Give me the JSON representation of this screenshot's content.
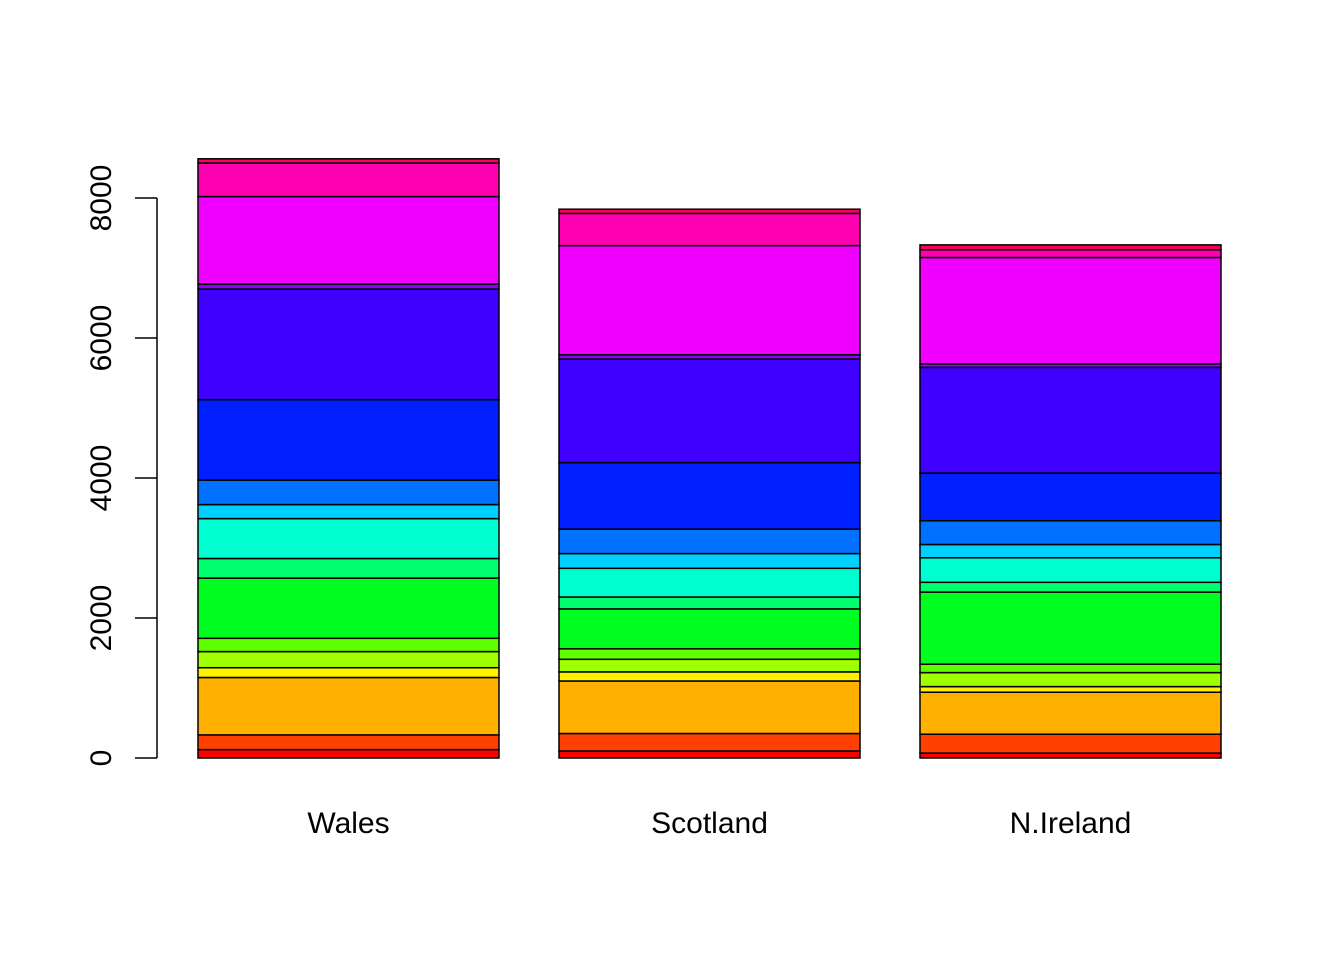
{
  "chart_data": {
    "type": "bar",
    "stacked": true,
    "title": "",
    "xlabel": "",
    "ylabel": "",
    "categories": [
      "Wales",
      "Scotland",
      "N.Ireland"
    ],
    "ylim": [
      0,
      8600
    ],
    "y_ticks": [
      0,
      2000,
      4000,
      6000,
      8000
    ],
    "y_tick_labels": [
      "0",
      "2000",
      "4000",
      "6000",
      "8000"
    ],
    "segment_colors": [
      "#FF0000",
      "#FF4000",
      "#FFB000",
      "#FFF000",
      "#A0FF00",
      "#60FF00",
      "#00FF20",
      "#00FF70",
      "#00FFD0",
      "#00D0FF",
      "#0070FF",
      "#0020FF",
      "#4000FF",
      "#9000FF",
      "#F000FF",
      "#FF00B0",
      "#FF0060"
    ],
    "series": [
      {
        "values": [
          120,
          100,
          70
        ]
      },
      {
        "values": [
          210,
          250,
          270
        ]
      },
      {
        "values": [
          820,
          750,
          600
        ]
      },
      {
        "values": [
          140,
          130,
          80
        ]
      },
      {
        "values": [
          230,
          180,
          200
        ]
      },
      {
        "values": [
          190,
          150,
          120
        ]
      },
      {
        "values": [
          860,
          570,
          1030
        ]
      },
      {
        "values": [
          280,
          170,
          140
        ]
      },
      {
        "values": [
          570,
          410,
          350
        ]
      },
      {
        "values": [
          200,
          210,
          190
        ]
      },
      {
        "values": [
          350,
          350,
          340
        ]
      },
      {
        "values": [
          1150,
          950,
          680
        ]
      },
      {
        "values": [
          1580,
          1480,
          1510
        ]
      },
      {
        "values": [
          70,
          60,
          50
        ]
      },
      {
        "values": [
          1250,
          1560,
          1520
        ]
      },
      {
        "values": [
          480,
          460,
          110
        ]
      },
      {
        "values": [
          60,
          60,
          70
        ]
      }
    ]
  }
}
